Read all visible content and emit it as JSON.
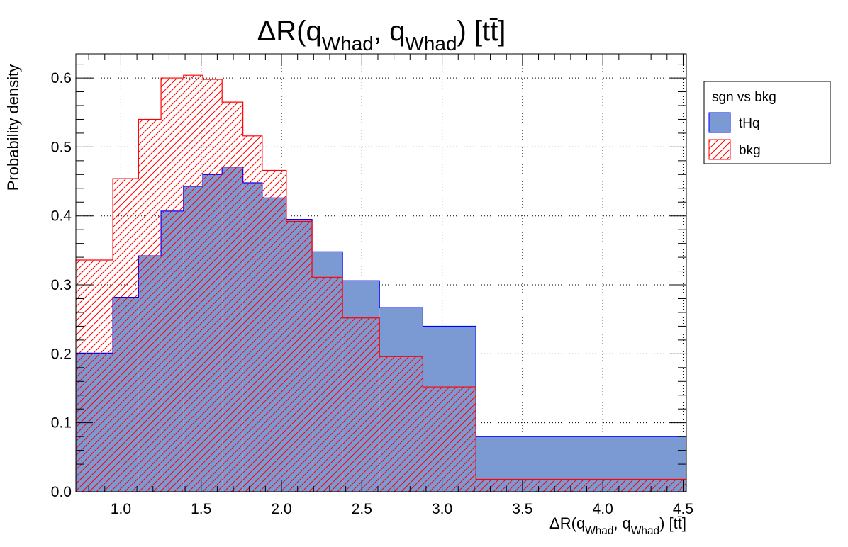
{
  "chart_data": {
    "type": "histogram",
    "title": {
      "base": "ΔR(q",
      "sub1": "Whad",
      "mid": ", q",
      "sub2": "Whad",
      "end": ") [tt̄]"
    },
    "xlabel": {
      "base": "ΔR(q",
      "sub1": "Whad",
      "mid": ", q",
      "sub2": "Whad",
      "end": ") [tt̄]"
    },
    "ylabel": "Probability density",
    "xlim": [
      0.72,
      4.52
    ],
    "ylim": [
      0.0,
      0.635
    ],
    "xticks": [
      1.0,
      1.5,
      2.0,
      2.5,
      3.0,
      3.5,
      4.0,
      4.5
    ],
    "xtick_labels": [
      "1.0",
      "1.5",
      "2.0",
      "2.5",
      "3.0",
      "3.5",
      "4.0",
      "4.5"
    ],
    "yticks": [
      0.0,
      0.1,
      0.2,
      0.3,
      0.4,
      0.5,
      0.6
    ],
    "ytick_labels": [
      "0.0",
      "0.1",
      "0.2",
      "0.3",
      "0.4",
      "0.5",
      "0.6"
    ],
    "grid": true,
    "bin_edges": [
      0.72,
      0.95,
      1.11,
      1.25,
      1.39,
      1.51,
      1.63,
      1.76,
      1.88,
      2.03,
      2.19,
      2.38,
      2.61,
      2.88,
      3.21,
      4.52
    ],
    "series": [
      {
        "name": "tHq",
        "style": "solid-fill",
        "color": "#7b9ad4",
        "edge_color": "#0000ff",
        "values": [
          0.201,
          0.282,
          0.342,
          0.407,
          0.443,
          0.46,
          0.471,
          0.448,
          0.426,
          0.395,
          0.348,
          0.306,
          0.267,
          0.24,
          0.08
        ]
      },
      {
        "name": "bkg",
        "style": "hatched",
        "color": "#ff0000",
        "values": [
          0.336,
          0.454,
          0.54,
          0.6,
          0.604,
          0.598,
          0.565,
          0.516,
          0.466,
          0.392,
          0.311,
          0.252,
          0.196,
          0.152,
          0.018
        ]
      }
    ],
    "legend": {
      "title": "sgn vs bkg",
      "position": "outside-right-top",
      "entries": [
        "tHq",
        "bkg"
      ]
    }
  }
}
